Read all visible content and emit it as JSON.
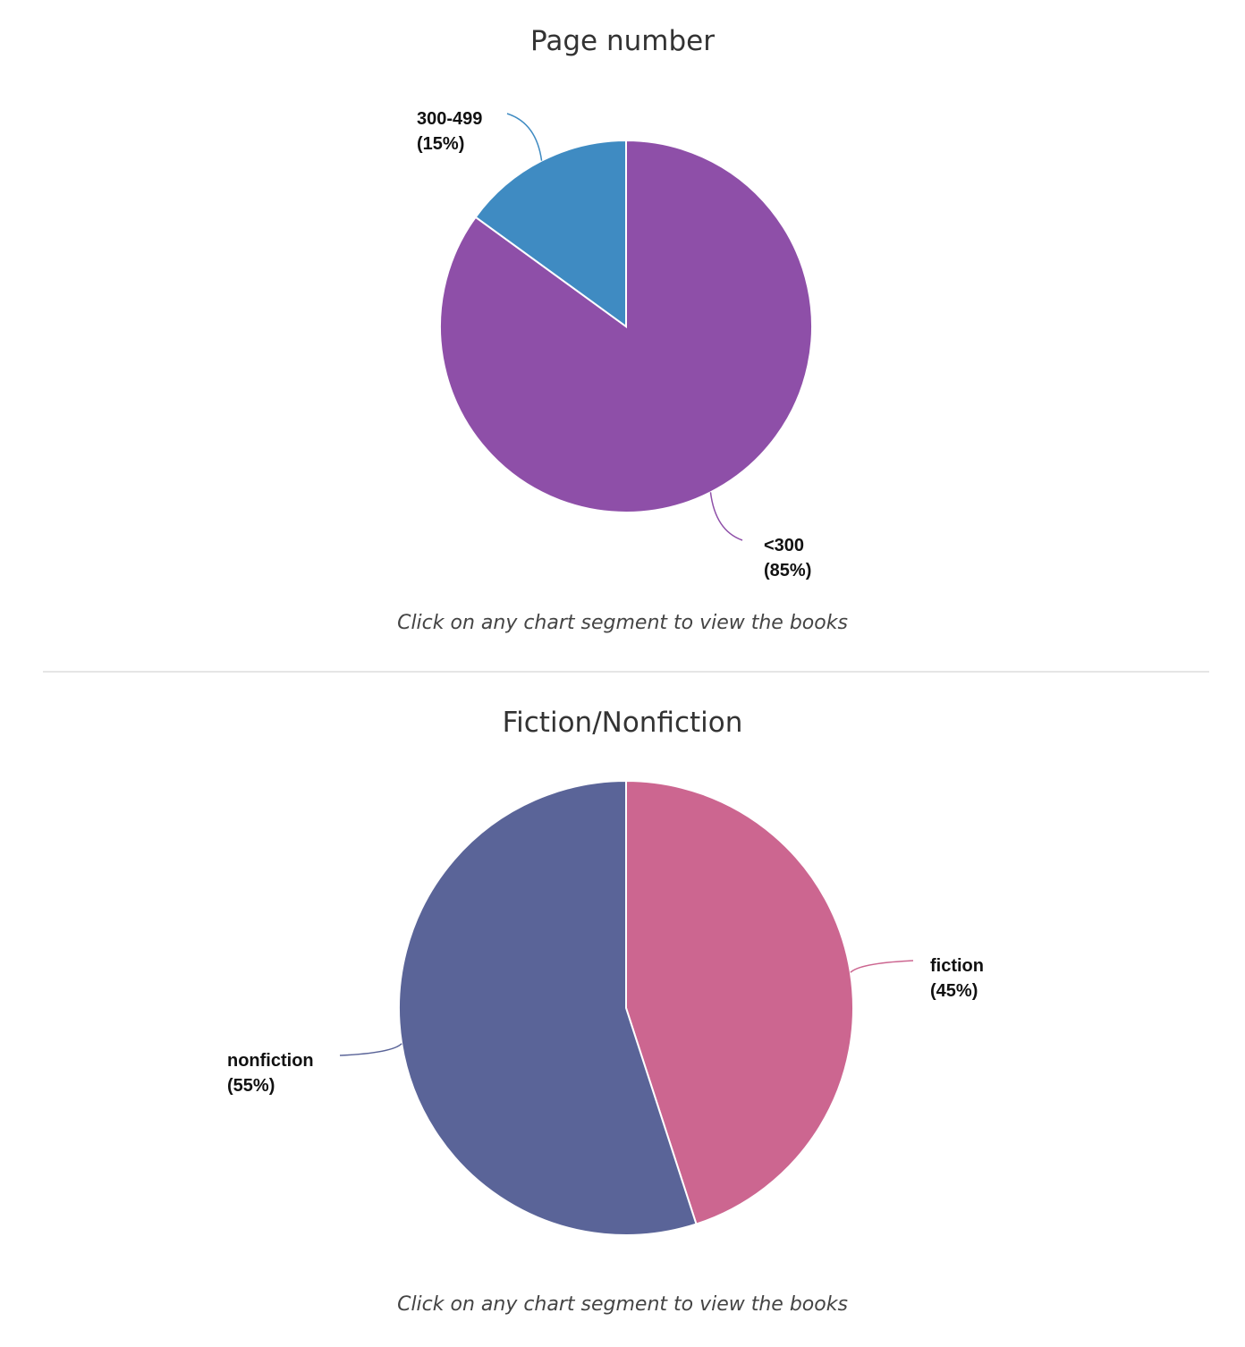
{
  "chart_data": [
    {
      "type": "pie",
      "title": "Page number",
      "slices": [
        {
          "label": "<300",
          "value": 85,
          "percent_label": "(85%)",
          "color": "#8e4fa8"
        },
        {
          "label": "300-499",
          "value": 15,
          "percent_label": "(15%)",
          "color": "#3f8bc2"
        }
      ],
      "note": "Click on any chart segment to view the books"
    },
    {
      "type": "pie",
      "title": "Fiction/Nonfiction",
      "slices": [
        {
          "label": "fiction",
          "value": 45,
          "percent_label": "(45%)",
          "color": "#cc6690"
        },
        {
          "label": "nonfiction",
          "value": 55,
          "percent_label": "(55%)",
          "color": "#5a6498"
        }
      ],
      "note": "Click on any chart segment to view the books"
    }
  ]
}
